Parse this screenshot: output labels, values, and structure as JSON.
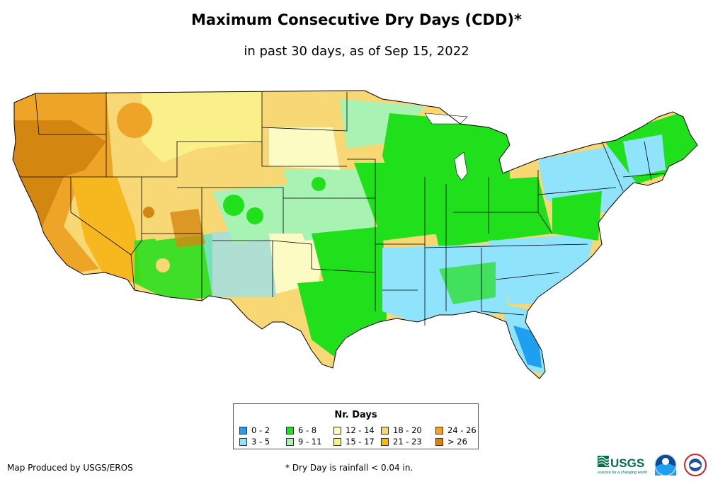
{
  "title": "Maximum Consecutive Dry Days (CDD)*",
  "subtitle": "in past 30 days, as of Sep 15, 2022",
  "legend": {
    "title": "Nr. Days",
    "items": [
      {
        "label": "0 - 2",
        "color": "#1f9ff0"
      },
      {
        "label": "3 - 5",
        "color": "#8fe3fb"
      },
      {
        "label": "6 - 8",
        "color": "#1fe01a"
      },
      {
        "label": "9 - 11",
        "color": "#a8f2b4"
      },
      {
        "label": "12 - 14",
        "color": "#fdfbc4"
      },
      {
        "label": "15 - 17",
        "color": "#faf08a"
      },
      {
        "label": "18 - 20",
        "color": "#f7d874"
      },
      {
        "label": "21 - 23",
        "color": "#f6b81e"
      },
      {
        "label": "24 - 26",
        "color": "#eea527"
      },
      {
        "label": "> 26",
        "color": "#d48710"
      }
    ]
  },
  "credit": "Map Produced by USGS/EROS",
  "footnote": "* Dry Day is rainfall < 0.04 in.",
  "logos": {
    "usgs": "USGS",
    "usgs_tagline": "science for a changing world"
  }
}
